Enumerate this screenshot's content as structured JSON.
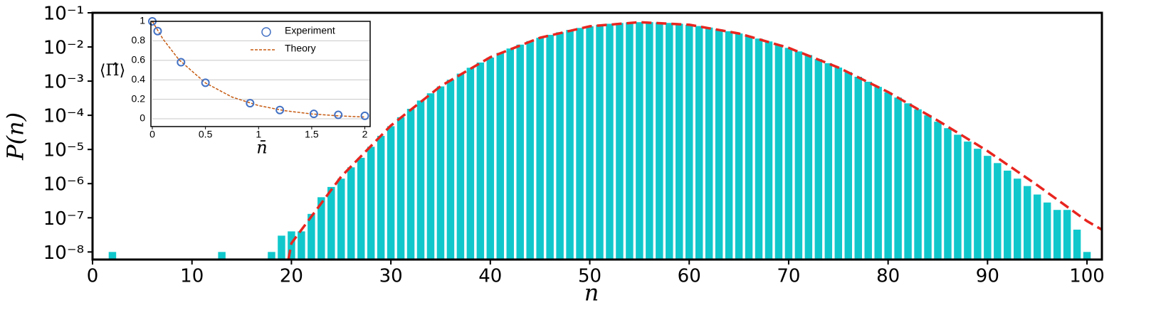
{
  "chart_data": [
    {
      "type": "bar",
      "yscale": "log",
      "color": "#10c8cc",
      "x_label": "n",
      "y_label": "P(n)",
      "x": [
        2,
        13,
        18,
        19,
        20,
        21,
        22,
        23,
        24,
        25,
        26,
        27,
        28,
        29,
        30,
        31,
        32,
        33,
        34,
        35,
        36,
        37,
        38,
        39,
        40,
        41,
        42,
        43,
        44,
        45,
        46,
        47,
        48,
        49,
        50,
        51,
        52,
        53,
        54,
        55,
        56,
        57,
        58,
        59,
        60,
        61,
        62,
        63,
        64,
        65,
        66,
        67,
        68,
        69,
        70,
        71,
        72,
        73,
        74,
        75,
        76,
        77,
        78,
        79,
        80,
        81,
        82,
        83,
        84,
        85,
        86,
        87,
        88,
        89,
        90,
        91,
        92,
        93,
        94,
        95,
        96,
        97,
        98,
        99,
        100
      ],
      "values": [
        1e-08,
        1e-08,
        1e-08,
        3e-08,
        4e-08,
        4e-08,
        1.3e-07,
        4e-07,
        8e-07,
        1.4e-06,
        3e-06,
        5.7e-06,
        1.2e-05,
        2.5e-05,
        4.8e-05,
        8.8e-05,
        0.000155,
        0.00027,
        0.00044,
        0.0007,
        0.0011,
        0.00166,
        0.00246,
        0.0035,
        0.0049,
        0.0067,
        0.009,
        0.0117,
        0.0149,
        0.0186,
        0.0226,
        0.027,
        0.0315,
        0.036,
        0.0403,
        0.0443,
        0.0477,
        0.0504,
        0.0522,
        0.0532,
        0.0532,
        0.0523,
        0.0505,
        0.0479,
        0.0447,
        0.041,
        0.037,
        0.0329,
        0.0288,
        0.0248,
        0.0211,
        0.0176,
        0.0145,
        0.0118,
        0.0094,
        0.0074,
        0.0058,
        0.0044,
        0.00335,
        0.0025,
        0.00184,
        0.00134,
        0.00096,
        0.00068,
        0.00047,
        0.00033,
        0.000224,
        0.00015,
        0.0001,
        6.5e-05,
        4.2e-05,
        2.7e-05,
        1.7e-05,
        1.05e-05,
        6.5e-06,
        4e-06,
        2.4e-06,
        1.4e-06,
        8.5e-07,
        4.8e-07,
        2.8e-07,
        1.7e-07,
        1.7e-07,
        4.5e-08,
        1e-08
      ],
      "theory": {
        "color": "#e8251f",
        "x": [
          19.7,
          20,
          25,
          30,
          35,
          40,
          45,
          50,
          55,
          60,
          65,
          70,
          75,
          80,
          85,
          90,
          95,
          100,
          101.5
        ],
        "values": [
          6e-09,
          1.8e-08,
          1.6e-06,
          5e-05,
          0.00071,
          0.005,
          0.0186,
          0.0403,
          0.0532,
          0.0447,
          0.0248,
          0.0094,
          0.0025,
          0.00048,
          7e-05,
          9e-06,
          9e-07,
          8e-08,
          4.5e-08
        ]
      },
      "xlim": [
        0,
        101.5
      ],
      "xticks": [
        0,
        10,
        20,
        30,
        40,
        50,
        60,
        70,
        80,
        90,
        100
      ],
      "ylim": [
        6e-09,
        0.1
      ],
      "yticks": [
        {
          "value": 1e-08,
          "label": "10⁻⁸"
        },
        {
          "value": 1e-07,
          "label": "10⁻⁷"
        },
        {
          "value": 1e-06,
          "label": "10⁻⁶"
        },
        {
          "value": 1e-05,
          "label": "10⁻⁵"
        },
        {
          "value": 0.0001,
          "label": "10⁻⁴"
        },
        {
          "value": 0.001,
          "label": "10⁻³"
        },
        {
          "value": 0.01,
          "label": "10⁻²"
        },
        {
          "value": 0.1,
          "label": "10⁻¹"
        }
      ]
    },
    {
      "type": "scatter",
      "x_label": "n̄",
      "y_label": "⟨Π̂⟩",
      "grid": true,
      "legend": "upper right",
      "series": [
        {
          "name": "Experiment",
          "color": "#4472c4",
          "x": [
            0,
            0.05,
            0.27,
            0.5,
            0.92,
            1.2,
            1.52,
            1.75,
            2
          ],
          "values": [
            1,
            0.9,
            0.58,
            0.37,
            0.16,
            0.09,
            0.05,
            0.04,
            0.03
          ]
        },
        {
          "name": "Theory",
          "color": "#c55a11",
          "x": [
            0,
            0.1,
            0.25,
            0.5,
            0.75,
            1,
            1.25,
            1.5,
            1.75,
            2
          ],
          "values": [
            1,
            0.819,
            0.607,
            0.368,
            0.223,
            0.135,
            0.082,
            0.05,
            0.03,
            0.018
          ]
        }
      ],
      "xlim": [
        0,
        2.05
      ],
      "xticks": [
        0,
        0.5,
        1,
        1.5,
        2
      ],
      "ylim": [
        -0.08,
        1.0
      ],
      "yticks": [
        0,
        0.2,
        0.4,
        0.6,
        0.8,
        1
      ]
    }
  ]
}
